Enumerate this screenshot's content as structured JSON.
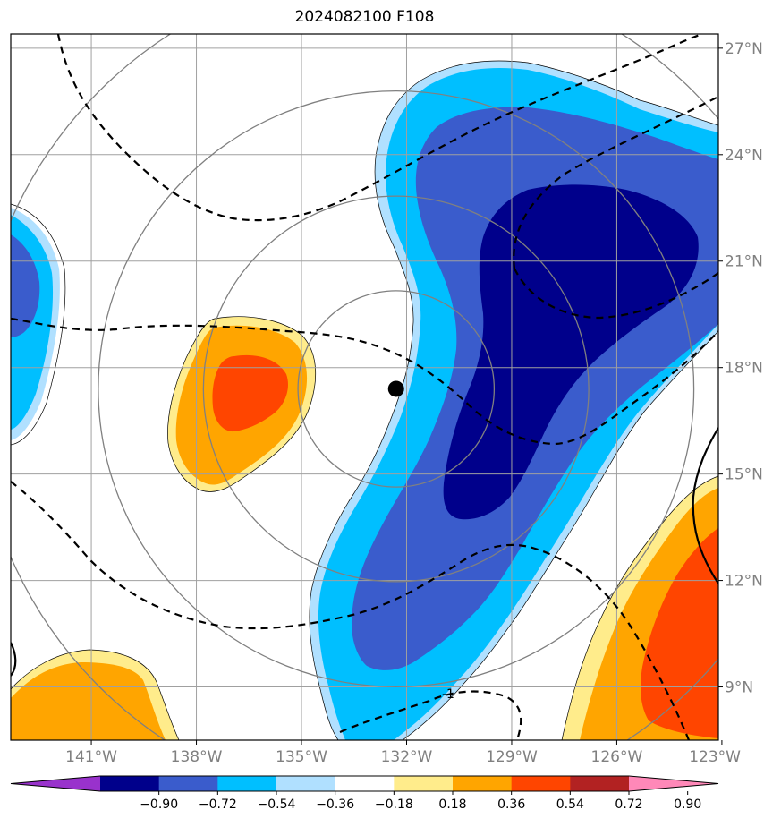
{
  "title": "2024082100 F108",
  "map": {
    "lon_min": -143.3,
    "lon_max": -123.1,
    "lat_min": 7.5,
    "lat_max": 27.4,
    "lon_ticks": [
      {
        "value": -141,
        "label": "141°W"
      },
      {
        "value": -138,
        "label": "138°W"
      },
      {
        "value": -135,
        "label": "135°W"
      },
      {
        "value": -132,
        "label": "132°W"
      },
      {
        "value": -129,
        "label": "129°W"
      },
      {
        "value": -126,
        "label": "126°W"
      },
      {
        "value": -123,
        "label": "123°W"
      }
    ],
    "lat_ticks": [
      {
        "value": 27,
        "label": "27°N"
      },
      {
        "value": 24,
        "label": "24°N"
      },
      {
        "value": 21,
        "label": "21°N"
      },
      {
        "value": 18,
        "label": "18°N"
      },
      {
        "value": 15,
        "label": "15°N"
      },
      {
        "value": 12,
        "label": "12°N"
      },
      {
        "value": 9,
        "label": "9°N"
      }
    ],
    "grid": true,
    "center": {
      "lon": -132.3,
      "lat": 17.4
    },
    "range_rings_deg": [
      2.8,
      5.5,
      8.5,
      12
    ],
    "contour_label": "-1"
  },
  "colorbar": {
    "ticks": [
      "−0.90",
      "−0.72",
      "−0.54",
      "−0.36",
      "−0.18",
      "0.18",
      "0.36",
      "0.54",
      "0.72",
      "0.90"
    ],
    "colors": [
      "#9932cc",
      "#00008b",
      "#3a5ccc",
      "#00bfff",
      "#b0e0ff",
      "#ffffff",
      "#ffec8b",
      "#ffa500",
      "#ff4500",
      "#b22222",
      "#ff88b8"
    ],
    "extend": "both"
  }
}
